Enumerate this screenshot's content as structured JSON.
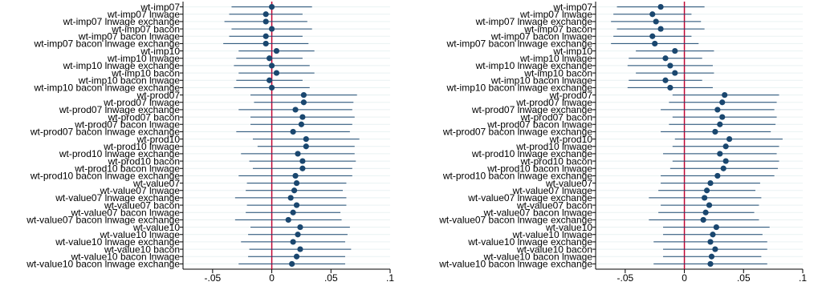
{
  "chart_data": [
    {
      "type": "scatter",
      "subtype": "coefficient-plot",
      "title": "",
      "xlabel": "",
      "ylabel": "",
      "xlim": [
        -0.075,
        0.1
      ],
      "xticks": [
        -0.05,
        0,
        0.05,
        0.1
      ],
      "xtick_labels": [
        "-.05",
        "0",
        ".05",
        ".1"
      ],
      "reference_line_x": 0,
      "grid": true,
      "categories": [
        "wt-imp07",
        "wt-imp07 lnwage",
        "wt-imp07 lnwage exchange",
        "wt-imp07 bacon",
        "wt-imp07 bacon lnwage",
        "wt-imp07 bacon lnwage exchange",
        "wt-imp10",
        "wt-imp10 lnwage",
        "wt-imp10 lnwage exchange",
        "wt-imp10 bacon",
        "wt-imp10 bacon lnwage",
        "wt-imp10 bacon lnwage exchange",
        "wt-prod07",
        "wt-prod07 lnwage",
        "wt-prod07 lnwage exchange",
        "wt-prod07 bacon",
        "wt-prod07 bacon lnwage",
        "wt-prod07 bacon lnwage exchange",
        "wt-prod10",
        "wt-prod10 lnwage",
        "wt-prod10 lnwage exchange",
        "wt-prod10 bacon",
        "wt-prod10 bacon lnwage",
        "wt-prod10 bacon lnwage exchange",
        "wt-value07",
        "wt-value07 lnwage",
        "wt-value07 lnwage exchange",
        "wt-value07 bacon",
        "wt-value07 bacon lnwage",
        "wt-value07 bacon lnwage exchange",
        "wt-value10",
        "wt-value10 lnwage",
        "wt-value10 lnwage exchange",
        "wt-value10 bacon",
        "wt-value10 bacon lnwage",
        "wt-value10 bacon lnwage exchange"
      ],
      "estimates": [
        0,
        -0.005,
        -0.005,
        0,
        -0.005,
        -0.005,
        0.004,
        -0.002,
        0,
        0.004,
        -0.002,
        0,
        0.027,
        0.027,
        0.02,
        0.026,
        0.025,
        0.018,
        0.029,
        0.029,
        0.022,
        0.026,
        0.026,
        0.02,
        0.021,
        0.019,
        0.016,
        0.021,
        0.018,
        0.014,
        0.024,
        0.022,
        0.018,
        0.024,
        0.021,
        0.017
      ],
      "ci_low": [
        -0.034,
        -0.036,
        -0.04,
        -0.034,
        -0.036,
        -0.041,
        -0.028,
        -0.03,
        -0.032,
        -0.028,
        -0.03,
        -0.032,
        -0.018,
        -0.015,
        -0.028,
        -0.018,
        -0.018,
        -0.03,
        -0.016,
        -0.012,
        -0.026,
        -0.019,
        -0.016,
        -0.028,
        -0.021,
        -0.022,
        -0.031,
        -0.021,
        -0.022,
        -0.031,
        -0.018,
        -0.02,
        -0.026,
        -0.019,
        -0.02,
        -0.028
      ],
      "ci_high": [
        0.034,
        0.026,
        0.03,
        0.034,
        0.026,
        0.031,
        0.036,
        0.026,
        0.032,
        0.036,
        0.026,
        0.032,
        0.072,
        0.069,
        0.068,
        0.07,
        0.068,
        0.066,
        0.074,
        0.07,
        0.07,
        0.071,
        0.068,
        0.068,
        0.063,
        0.06,
        0.063,
        0.063,
        0.058,
        0.059,
        0.066,
        0.064,
        0.062,
        0.067,
        0.062,
        0.062
      ]
    },
    {
      "type": "scatter",
      "subtype": "coefficient-plot",
      "title": "",
      "xlabel": "",
      "ylabel": "",
      "xlim": [
        -0.075,
        0.1
      ],
      "xticks": [
        -0.05,
        0,
        0.05,
        0.1
      ],
      "xtick_labels": [
        "-.05",
        "0",
        ".05",
        ".1"
      ],
      "reference_line_x": 0,
      "grid": true,
      "categories": [
        "wt-imp07",
        "wt-imp07 lnwage",
        "wt-imp07 lnwage exchange",
        "wt-imp07 bacon",
        "wt-imp07 bacon lnwage",
        "wt-imp07 bacon lnwage exchange",
        "wt-imp10",
        "wt-imp10 lnwage",
        "wt-imp10 lnwage exchange",
        "wt-imp10 bacon",
        "wt-imp10 bacon lnwage",
        "wt-imp10 bacon lnwage exchange",
        "wt-prod07",
        "wt-prod07 lnwage",
        "wt-prod07 lnwage exchange",
        "wt-prod07 bacon",
        "wt-prod07 bacon lnwage",
        "wt-prod07 bacon lnwage exchange",
        "wt-prod10",
        "wt-prod10 lnwage",
        "wt-prod10 lnwage exchange",
        "wt-prod10 bacon",
        "wt-prod10 bacon lnwage",
        "wt-prod10 bacon lnwage exchange",
        "wt-value07",
        "wt-value07 lnwage",
        "wt-value07 lnwage exchange",
        "wt-value07 bacon",
        "wt-value07 bacon lnwage",
        "wt-value07 bacon lnwage exchange",
        "wt-value10",
        "wt-value10 lnwage",
        "wt-value10 lnwage exchange",
        "wt-value10 bacon",
        "wt-value10 bacon lnwage",
        "wt-value10 bacon lnwage exchange"
      ],
      "estimates": [
        -0.02,
        -0.027,
        -0.024,
        -0.02,
        -0.027,
        -0.025,
        -0.008,
        -0.016,
        -0.012,
        -0.008,
        -0.016,
        -0.012,
        0.034,
        0.032,
        0.028,
        0.032,
        0.03,
        0.026,
        0.038,
        0.035,
        0.03,
        0.035,
        0.033,
        0.028,
        0.022,
        0.019,
        0.017,
        0.021,
        0.018,
        0.016,
        0.027,
        0.024,
        0.022,
        0.026,
        0.023,
        0.022
      ],
      "ci_low": [
        -0.057,
        -0.06,
        -0.062,
        -0.057,
        -0.06,
        -0.062,
        -0.041,
        -0.047,
        -0.048,
        -0.041,
        -0.047,
        -0.048,
        -0.01,
        -0.013,
        -0.02,
        -0.01,
        -0.013,
        -0.02,
        -0.008,
        -0.01,
        -0.018,
        -0.01,
        -0.012,
        -0.02,
        -0.02,
        -0.022,
        -0.03,
        -0.02,
        -0.022,
        -0.03,
        -0.018,
        -0.018,
        -0.026,
        -0.018,
        -0.018,
        -0.026
      ],
      "ci_high": [
        0.017,
        0.006,
        0.014,
        0.017,
        0.006,
        0.012,
        0.025,
        0.015,
        0.024,
        0.025,
        0.015,
        0.024,
        0.08,
        0.078,
        0.076,
        0.078,
        0.077,
        0.073,
        0.083,
        0.08,
        0.078,
        0.08,
        0.079,
        0.076,
        0.064,
        0.06,
        0.065,
        0.063,
        0.059,
        0.063,
        0.072,
        0.066,
        0.07,
        0.07,
        0.065,
        0.07
      ]
    }
  ],
  "colors": {
    "marker": "#1a476f",
    "ci_line": "#1a476f",
    "reference_line": "#c10534",
    "grid": "#eaf2f3",
    "axis": "#000000"
  }
}
